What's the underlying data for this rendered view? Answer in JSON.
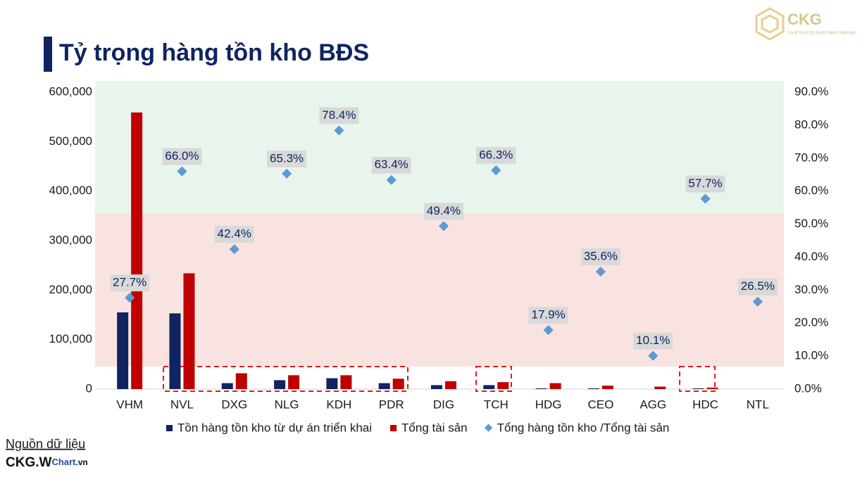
{
  "logo": {
    "name": "CKG",
    "tagline": "YOUR TRUSTED INVESTMENT PARTNER"
  },
  "source": {
    "label": "Nguồn dữ liệu",
    "brand": "CKG.W",
    "brand_tail": "Chart",
    "brand_domain": ".vn"
  },
  "chart_data": {
    "type": "bar",
    "title": "Tỷ trọng hàng tồn kho BĐS",
    "categories": [
      "VHM",
      "NVL",
      "DXG",
      "NLG",
      "KDH",
      "PDR",
      "DIG",
      "TCH",
      "HDG",
      "CEO",
      "AGG",
      "HDC",
      "NTL"
    ],
    "series": [
      {
        "name": "Tồn hàng tồn kho từ dự án triển khai",
        "color": "#0f2461",
        "values": [
          155000,
          153000,
          12000,
          18000,
          22000,
          12000,
          8000,
          8000,
          1500,
          1500,
          null,
          1500,
          null
        ]
      },
      {
        "name": "Tổng tài sản",
        "color": "#c00000",
        "values": [
          559000,
          234000,
          32000,
          28000,
          28000,
          21000,
          16000,
          14000,
          12000,
          7000,
          5000,
          3000,
          null
        ]
      },
      {
        "name": "Tổng hàng tồn kho /Tổng tài sản",
        "color": "#5b9bd5",
        "type": "scatter",
        "axis": "y2",
        "values": [
          27.7,
          66.0,
          42.4,
          65.3,
          78.4,
          63.4,
          49.4,
          66.3,
          17.9,
          35.6,
          10.1,
          57.7,
          26.5
        ],
        "value_labels": [
          "27.7%",
          "66.0%",
          "42.4%",
          "65.3%",
          "78.4%",
          "63.4%",
          "49.4%",
          "66.3%",
          "17.9%",
          "35.6%",
          "10.1%",
          "57.7%",
          "26.5%"
        ]
      }
    ],
    "ylim": [
      0,
      600000
    ],
    "yticks": [
      0,
      {
        "value": 100000,
        "label": "100,000"
      },
      {
        "value": 200000,
        "label": "200,000"
      },
      {
        "value": 300000,
        "label": "300,000"
      },
      {
        "value": 400000,
        "label": "400,000"
      },
      {
        "value": 500000,
        "label": "500,000"
      },
      {
        "value": 600000,
        "label": "600,000"
      }
    ],
    "y2lim": [
      0,
      90
    ],
    "y2ticks": [
      {
        "value": 0,
        "label": "0.0%"
      },
      {
        "value": 10,
        "label": "10.0%"
      },
      {
        "value": 20,
        "label": "20.0%"
      },
      {
        "value": 30,
        "label": "30.0%"
      },
      {
        "value": 40,
        "label": "40.0%"
      },
      {
        "value": 50,
        "label": "50.0%"
      },
      {
        "value": 60,
        "label": "60.0%"
      },
      {
        "value": 70,
        "label": "70.0%"
      },
      {
        "value": 80,
        "label": "80.0%"
      },
      {
        "value": 90,
        "label": "90.0%"
      }
    ],
    "legend": "bottom"
  }
}
